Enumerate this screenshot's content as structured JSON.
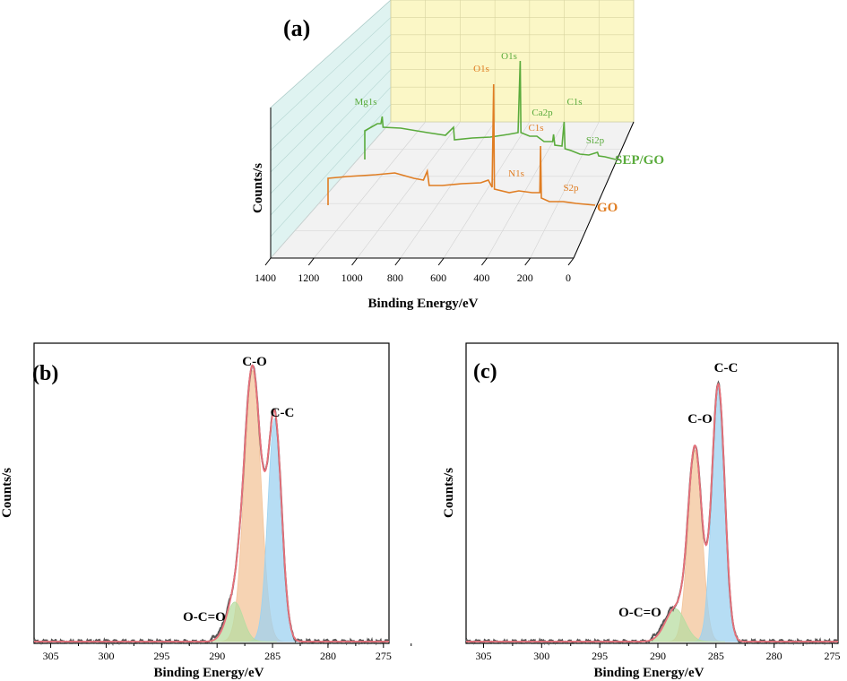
{
  "panel_a": {
    "label": "(a)",
    "ylabel": "Counts/s",
    "xlabel": "Binding Energy/eV",
    "ticks": [
      "1400",
      "1200",
      "1000",
      "800",
      "600",
      "400",
      "200",
      "0"
    ],
    "series": [
      {
        "name": "SEP/GO",
        "color": "#5aab3c",
        "peaks": [
          {
            "label": "O1s",
            "x": 531
          },
          {
            "label": "Mg1s",
            "x": 1303
          },
          {
            "label": "Ca2p",
            "x": 347
          },
          {
            "label": "C1s",
            "x": 285
          },
          {
            "label": "Si2p",
            "x": 102
          }
        ]
      },
      {
        "name": "GO",
        "color": "#e07d22",
        "peaks": [
          {
            "label": "O1s",
            "x": 532
          },
          {
            "label": "C1s",
            "x": 285
          },
          {
            "label": "N1s",
            "x": 400
          },
          {
            "label": "S2p",
            "x": 168
          }
        ]
      }
    ]
  },
  "panel_b": {
    "label": "(b)",
    "ylabel": "Counts/s",
    "xlabel": "Binding Energy/eV",
    "ticks": [
      "305",
      "300",
      "295",
      "290",
      "285",
      "280",
      "275"
    ],
    "peak_labels": {
      "co": "C-O",
      "cc": "C-C",
      "occ": "O-C=O"
    }
  },
  "panel_c": {
    "label": "(c)",
    "ylabel": "Counts/s",
    "xlabel": "Binding Energy/eV",
    "ticks": [
      "305",
      "300",
      "295",
      "290",
      "285",
      "280",
      "275"
    ],
    "peak_labels": {
      "co": "C-O",
      "cc": "C-C",
      "occ": "O-C=O"
    }
  },
  "chart_data": [
    {
      "type": "line",
      "panel": "a",
      "xlabel": "Binding Energy/eV",
      "ylabel": "Counts/s",
      "xlim": [
        1400,
        0
      ],
      "series": [
        {
          "name": "SEP/GO",
          "peaks": {
            "Mg1s": 1303,
            "O1s": 531,
            "Ca2p": 347,
            "C1s": 285,
            "Si2p": 102
          }
        },
        {
          "name": "GO",
          "peaks": {
            "O1s": 532,
            "N1s": 400,
            "C1s": 285,
            "S2p": 168
          }
        }
      ]
    },
    {
      "type": "line",
      "panel": "b",
      "xlabel": "Binding Energy/eV",
      "ylabel": "Counts/s",
      "xlim": [
        306.5,
        274.5
      ],
      "components": [
        {
          "name": "C-O",
          "center": 286.8,
          "height": 0.96,
          "width": 0.75,
          "color": "#f3c49a"
        },
        {
          "name": "C-C",
          "center": 284.8,
          "height": 0.79,
          "width": 0.62,
          "color": "#9dd2f0"
        },
        {
          "name": "O-C=O",
          "center": 288.4,
          "height": 0.14,
          "width": 0.75,
          "color": "#b8dca2"
        }
      ]
    },
    {
      "type": "line",
      "panel": "c",
      "xlabel": "Binding Energy/eV",
      "ylabel": "Counts/s",
      "xlim": [
        306.5,
        274.5
      ],
      "components": [
        {
          "name": "C-O",
          "center": 286.8,
          "height": 0.7,
          "width": 0.6,
          "color": "#f3c49a"
        },
        {
          "name": "C-C",
          "center": 284.8,
          "height": 0.94,
          "width": 0.55,
          "color": "#9dd2f0"
        },
        {
          "name": "O-C=O",
          "center": 288.5,
          "height": 0.12,
          "width": 0.85,
          "color": "#b8dca2"
        }
      ]
    }
  ]
}
